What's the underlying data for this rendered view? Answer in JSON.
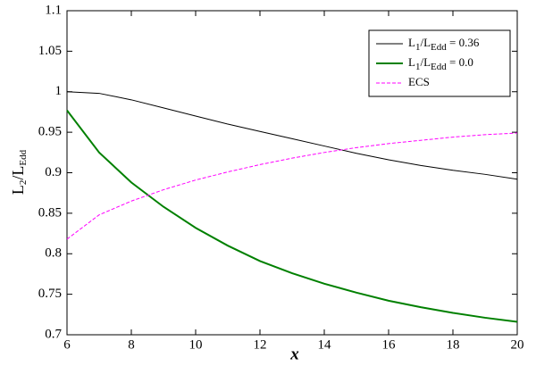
{
  "chart_data": {
    "type": "line",
    "xlabel": "x",
    "ylabel": "L2/LEdd",
    "x": [
      6,
      7,
      8,
      9,
      10,
      11,
      12,
      13,
      14,
      15,
      16,
      17,
      18,
      19,
      20
    ],
    "series": [
      {
        "name": "L1/LEdd = 0.36",
        "color": "#000000",
        "dash": false,
        "width": 1,
        "values": [
          1.0,
          0.998,
          0.99,
          0.98,
          0.97,
          0.96,
          0.951,
          0.942,
          0.933,
          0.924,
          0.916,
          0.909,
          0.903,
          0.898,
          0.892
        ]
      },
      {
        "name": "L1/LEdd = 0.0",
        "color": "#008000",
        "dash": false,
        "width": 2,
        "values": [
          0.977,
          0.925,
          0.888,
          0.858,
          0.832,
          0.81,
          0.791,
          0.776,
          0.763,
          0.752,
          0.742,
          0.734,
          0.727,
          0.721,
          0.716
        ]
      },
      {
        "name": "ECS",
        "color": "#ff00ff",
        "dash": true,
        "width": 1,
        "values": [
          0.818,
          0.848,
          0.865,
          0.879,
          0.891,
          0.901,
          0.91,
          0.918,
          0.925,
          0.931,
          0.936,
          0.94,
          0.944,
          0.947,
          0.949
        ]
      }
    ],
    "xlim": [
      6,
      20
    ],
    "xticks": [
      6,
      8,
      10,
      12,
      14,
      16,
      18,
      20
    ],
    "ylim": [
      0.7,
      1.1
    ],
    "yticks": [
      0.7,
      0.75,
      0.8,
      0.85,
      0.9,
      0.95,
      1,
      1.05,
      1.1
    ],
    "grid": false,
    "legend": "upper right"
  }
}
